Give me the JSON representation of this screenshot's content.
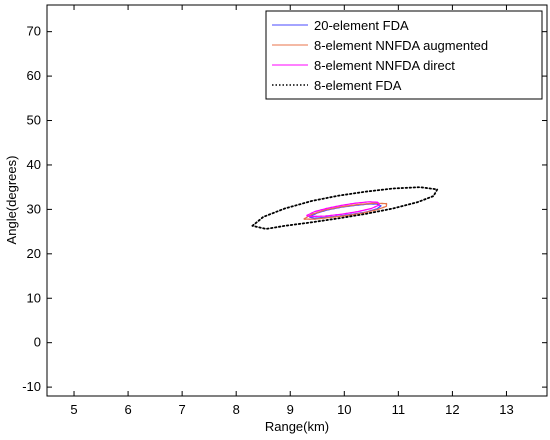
{
  "chart_data": {
    "type": "line",
    "title": "",
    "xlabel": "Range(km)",
    "ylabel": "Angle(degrees)",
    "xlim": [
      4.5,
      13.75
    ],
    "ylim": [
      -12,
      76
    ],
    "xticks": [
      5,
      6,
      7,
      8,
      9,
      10,
      11,
      12,
      13
    ],
    "yticks": [
      -10,
      0,
      10,
      20,
      30,
      40,
      50,
      60,
      70
    ],
    "grid": false,
    "legend_position": "top-right",
    "series": [
      {
        "name": "20-element  FDA",
        "color": "#4a4aff",
        "style": "solid",
        "points": [
          [
            9.35,
            28.3
          ],
          [
            9.5,
            29.2
          ],
          [
            9.7,
            29.9
          ],
          [
            9.95,
            30.5
          ],
          [
            10.2,
            30.9
          ],
          [
            10.45,
            31.2
          ],
          [
            10.6,
            31.2
          ],
          [
            10.68,
            30.8
          ],
          [
            10.6,
            30.1
          ],
          [
            10.4,
            29.4
          ],
          [
            10.15,
            28.9
          ],
          [
            9.9,
            28.5
          ],
          [
            9.65,
            28.2
          ],
          [
            9.45,
            28.0
          ],
          [
            9.35,
            28.3
          ]
        ]
      },
      {
        "name": "8-element NNFDA augmented",
        "color": "#e8734a",
        "style": "solid",
        "points": [
          [
            9.25,
            27.8
          ],
          [
            9.4,
            28.9
          ],
          [
            9.65,
            29.9
          ],
          [
            9.95,
            30.6
          ],
          [
            10.25,
            31.1
          ],
          [
            10.55,
            31.4
          ],
          [
            10.78,
            31.3
          ],
          [
            10.78,
            30.7
          ],
          [
            10.6,
            29.9
          ],
          [
            10.35,
            29.2
          ],
          [
            10.05,
            28.6
          ],
          [
            9.75,
            28.2
          ],
          [
            9.45,
            27.8
          ],
          [
            9.25,
            27.8
          ]
        ]
      },
      {
        "name": "8-element NNFDA direct",
        "color": "#ff00ff",
        "style": "solid",
        "points": [
          [
            9.3,
            28.6
          ],
          [
            9.45,
            29.5
          ],
          [
            9.7,
            30.3
          ],
          [
            9.95,
            30.9
          ],
          [
            10.2,
            31.4
          ],
          [
            10.45,
            31.7
          ],
          [
            10.62,
            31.6
          ],
          [
            10.65,
            31.0
          ],
          [
            10.5,
            30.2
          ],
          [
            10.25,
            29.5
          ],
          [
            9.95,
            28.9
          ],
          [
            9.65,
            28.5
          ],
          [
            9.4,
            28.4
          ],
          [
            9.3,
            28.6
          ]
        ]
      },
      {
        "name": "8-element  FDA",
        "color": "#000000",
        "style": "dotted",
        "points": [
          [
            8.3,
            26.3
          ],
          [
            8.5,
            28.3
          ],
          [
            8.9,
            30.2
          ],
          [
            9.4,
            31.9
          ],
          [
            9.9,
            33.1
          ],
          [
            10.4,
            34.0
          ],
          [
            10.9,
            34.7
          ],
          [
            11.4,
            35.0
          ],
          [
            11.72,
            34.5
          ],
          [
            11.65,
            33.0
          ],
          [
            11.35,
            31.6
          ],
          [
            10.9,
            30.2
          ],
          [
            10.4,
            29.0
          ],
          [
            9.9,
            28.0
          ],
          [
            9.4,
            27.1
          ],
          [
            8.9,
            26.3
          ],
          [
            8.55,
            25.6
          ],
          [
            8.3,
            26.3
          ]
        ]
      }
    ]
  }
}
